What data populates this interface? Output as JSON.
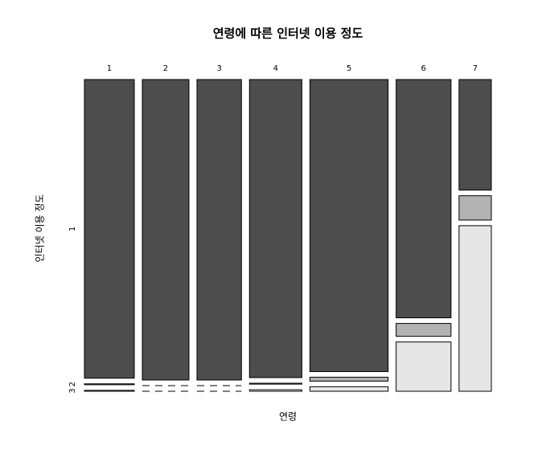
{
  "chart_data": {
    "type": "mosaic",
    "title": "연령에 따른 인터넷 이용 정도",
    "xlabel": "연령",
    "ylabel": "인터넷 이용 정도",
    "categories": [
      "1",
      "2",
      "3",
      "4",
      "5",
      "6",
      "7"
    ],
    "column_shares": [
      13.9,
      13.0,
      12.4,
      14.6,
      21.8,
      15.3,
      9.0
    ],
    "series": [
      {
        "name": "1",
        "color": "#4d4d4d",
        "values": [
          99.4,
          100,
          100,
          99.2,
          97.2,
          79.3,
          36.8
        ]
      },
      {
        "name": "2",
        "color": "#b3b3b3",
        "values": [
          0.3,
          0,
          0,
          0.3,
          1.3,
          4.3,
          8.1
        ]
      },
      {
        "name": "3",
        "color": "#e6e6e6",
        "values": [
          0.3,
          0,
          0,
          0.5,
          1.5,
          16.4,
          55.1
        ]
      }
    ]
  }
}
